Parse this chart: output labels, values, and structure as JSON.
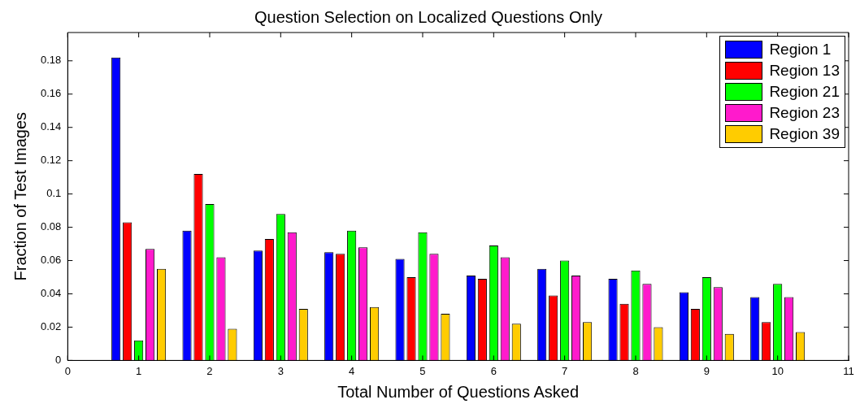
{
  "chart_data": {
    "type": "bar",
    "title": "Question Selection on Localized Questions Only",
    "xlabel": "Total Number of Questions Asked",
    "ylabel": "Fraction of Test Images",
    "x": [
      1,
      2,
      3,
      4,
      5,
      6,
      7,
      8,
      9,
      10
    ],
    "series": [
      {
        "name": "Region 1",
        "color": "#0000ff",
        "values": [
          0.182,
          0.078,
          0.066,
          0.065,
          0.061,
          0.051,
          0.055,
          0.049,
          0.041,
          0.038
        ]
      },
      {
        "name": "Region 13",
        "color": "#ff0000",
        "values": [
          0.083,
          0.112,
          0.073,
          0.064,
          0.05,
          0.049,
          0.039,
          0.034,
          0.031,
          0.023
        ]
      },
      {
        "name": "Region 21",
        "color": "#00ff00",
        "values": [
          0.012,
          0.094,
          0.088,
          0.078,
          0.077,
          0.069,
          0.06,
          0.054,
          0.05,
          0.046
        ]
      },
      {
        "name": "Region 23",
        "color": "#ff1acc",
        "values": [
          0.067,
          0.062,
          0.077,
          0.068,
          0.064,
          0.062,
          0.051,
          0.046,
          0.044,
          0.038
        ]
      },
      {
        "name": "Region 39",
        "color": "#ffcc00",
        "values": [
          0.055,
          0.019,
          0.031,
          0.032,
          0.028,
          0.022,
          0.023,
          0.02,
          0.016,
          0.017
        ]
      }
    ],
    "xlim": [
      0,
      11
    ],
    "xticks": [
      0,
      1,
      2,
      3,
      4,
      5,
      6,
      7,
      8,
      9,
      10,
      11
    ],
    "ylim": [
      0,
      0.197
    ],
    "yticks": [
      0,
      0.02,
      0.04,
      0.06,
      0.08,
      0.1,
      0.12,
      0.14,
      0.16,
      0.18
    ],
    "grid": false,
    "legend": "top right"
  }
}
